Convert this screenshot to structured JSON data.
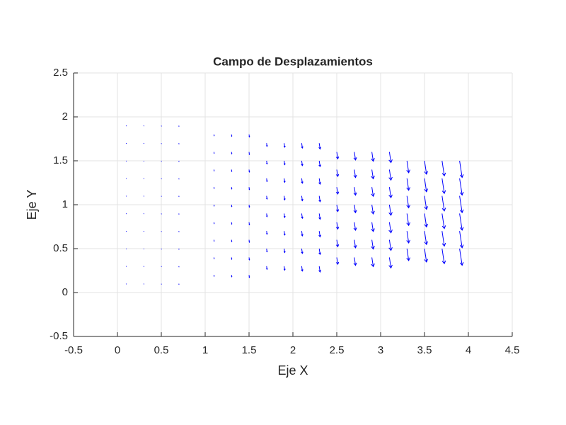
{
  "chart_data": {
    "type": "quiver",
    "title": "Campo de Desplazamientos",
    "x_label": "Eje X",
    "y_label": "Eje Y",
    "color": "#0000ff",
    "grid": true,
    "xlim": [
      -0.5,
      4.5
    ],
    "ylim": [
      -0.5,
      2.5
    ],
    "xticks": [
      -0.5,
      0,
      0.5,
      1,
      1.5,
      2,
      2.5,
      3,
      3.5,
      4,
      4.5
    ],
    "yticks": [
      -0.5,
      0,
      0.5,
      1,
      1.5,
      2,
      2.5
    ],
    "columns": [
      {
        "x": 0.1,
        "y": [
          0.1,
          0.3,
          0.5,
          0.7,
          0.9,
          1.1,
          1.3,
          1.5,
          1.7,
          1.9
        ],
        "u": [
          0,
          0,
          0,
          0,
          0,
          0,
          0,
          0,
          0,
          0
        ],
        "v": [
          -0.001,
          -0.001,
          -0.001,
          -0.001,
          -0.001,
          -0.001,
          -0.001,
          -0.001,
          -0.001,
          -0.001
        ]
      },
      {
        "x": 0.3,
        "y": [
          0.1,
          0.3,
          0.5,
          0.7,
          0.9,
          1.1,
          1.3,
          1.5,
          1.7,
          1.9
        ],
        "u": [
          0,
          0,
          0,
          0,
          0,
          0,
          0,
          0,
          0,
          0
        ],
        "v": [
          -0.002,
          -0.002,
          -0.002,
          -0.002,
          -0.002,
          -0.002,
          -0.002,
          -0.002,
          -0.002,
          -0.002
        ]
      },
      {
        "x": 0.5,
        "y": [
          0.1,
          0.3,
          0.5,
          0.7,
          0.9,
          1.1,
          1.3,
          1.5,
          1.7,
          1.9
        ],
        "u": [
          0.001,
          0.001,
          0.001,
          0.001,
          0.001,
          0.001,
          0.001,
          0.001,
          0.001,
          0.001
        ],
        "v": [
          -0.004,
          -0.004,
          -0.004,
          -0.004,
          -0.004,
          -0.004,
          -0.004,
          -0.004,
          -0.004,
          -0.004
        ]
      },
      {
        "x": 0.7,
        "y": [
          0.1,
          0.3,
          0.5,
          0.7,
          0.9,
          1.1,
          1.3,
          1.5,
          1.7,
          1.9
        ],
        "u": [
          0.001,
          0.001,
          0.001,
          0.001,
          0.001,
          0.001,
          0.001,
          0.001,
          0.001,
          0.001
        ],
        "v": [
          -0.007,
          -0.007,
          -0.007,
          -0.007,
          -0.007,
          -0.007,
          -0.007,
          -0.007,
          -0.007,
          -0.007
        ]
      },
      {
        "x": 1.1,
        "y": [
          0.2,
          0.4,
          0.6,
          0.8,
          1.0,
          1.2,
          1.4,
          1.6,
          1.8
        ],
        "u": [
          0.002,
          0.002,
          0.002,
          0.002,
          0.002,
          0.002,
          0.002,
          0.002,
          0.002
        ],
        "v": [
          -0.015,
          -0.015,
          -0.015,
          -0.015,
          -0.015,
          -0.015,
          -0.015,
          -0.015,
          -0.015
        ]
      },
      {
        "x": 1.3,
        "y": [
          0.2,
          0.4,
          0.6,
          0.8,
          1.0,
          1.2,
          1.4,
          1.6,
          1.8
        ],
        "u": [
          0.003,
          0.003,
          0.003,
          0.003,
          0.003,
          0.003,
          0.003,
          0.003,
          0.003
        ],
        "v": [
          -0.021,
          -0.021,
          -0.021,
          -0.021,
          -0.021,
          -0.021,
          -0.021,
          -0.021,
          -0.021
        ]
      },
      {
        "x": 1.5,
        "y": [
          0.2,
          0.4,
          0.6,
          0.8,
          1.0,
          1.2,
          1.4,
          1.6,
          1.8
        ],
        "u": [
          0.004,
          0.004,
          0.004,
          0.004,
          0.004,
          0.004,
          0.004,
          0.004,
          0.004
        ],
        "v": [
          -0.028,
          -0.028,
          -0.028,
          -0.028,
          -0.028,
          -0.028,
          -0.028,
          -0.028,
          -0.028
        ]
      },
      {
        "x": 1.7,
        "y": [
          0.3,
          0.5,
          0.7,
          0.9,
          1.1,
          1.3,
          1.5,
          1.7
        ],
        "u": [
          0.005,
          0.005,
          0.005,
          0.005,
          0.005,
          0.005,
          0.005,
          0.005
        ],
        "v": [
          -0.036,
          -0.036,
          -0.036,
          -0.036,
          -0.036,
          -0.036,
          -0.036,
          -0.036
        ]
      },
      {
        "x": 1.9,
        "y": [
          0.3,
          0.5,
          0.7,
          0.9,
          1.1,
          1.3,
          1.5,
          1.7
        ],
        "u": [
          0.007,
          0.007,
          0.007,
          0.007,
          0.007,
          0.007,
          0.007,
          0.007
        ],
        "v": [
          -0.045,
          -0.045,
          -0.045,
          -0.045,
          -0.045,
          -0.045,
          -0.045,
          -0.045
        ]
      },
      {
        "x": 2.1,
        "y": [
          0.3,
          0.5,
          0.7,
          0.9,
          1.1,
          1.3,
          1.5,
          1.7
        ],
        "u": [
          0.008,
          0.008,
          0.008,
          0.008,
          0.008,
          0.008,
          0.008,
          0.008
        ],
        "v": [
          -0.055,
          -0.055,
          -0.055,
          -0.055,
          -0.055,
          -0.055,
          -0.055,
          -0.055
        ]
      },
      {
        "x": 2.3,
        "y": [
          0.3,
          0.5,
          0.7,
          0.9,
          1.1,
          1.3,
          1.5,
          1.7
        ],
        "u": [
          0.01,
          0.01,
          0.01,
          0.01,
          0.01,
          0.01,
          0.01,
          0.01
        ],
        "v": [
          -0.066,
          -0.066,
          -0.066,
          -0.066,
          -0.066,
          -0.066,
          -0.066,
          -0.066
        ]
      },
      {
        "x": 2.5,
        "y": [
          0.4,
          0.6,
          0.8,
          1.0,
          1.2,
          1.4,
          1.6
        ],
        "u": [
          0.012,
          0.012,
          0.012,
          0.012,
          0.012,
          0.012,
          0.012
        ],
        "v": [
          -0.078,
          -0.078,
          -0.078,
          -0.078,
          -0.078,
          -0.078,
          -0.078
        ]
      },
      {
        "x": 2.7,
        "y": [
          0.4,
          0.6,
          0.8,
          1.0,
          1.2,
          1.4,
          1.6
        ],
        "u": [
          0.014,
          0.014,
          0.014,
          0.014,
          0.014,
          0.014,
          0.014
        ],
        "v": [
          -0.091,
          -0.091,
          -0.091,
          -0.091,
          -0.091,
          -0.091,
          -0.091
        ]
      },
      {
        "x": 2.9,
        "y": [
          0.4,
          0.6,
          0.8,
          1.0,
          1.2,
          1.4,
          1.6
        ],
        "u": [
          0.016,
          0.016,
          0.016,
          0.016,
          0.016,
          0.016,
          0.016
        ],
        "v": [
          -0.105,
          -0.105,
          -0.105,
          -0.105,
          -0.105,
          -0.105,
          -0.105
        ]
      },
      {
        "x": 3.1,
        "y": [
          0.4,
          0.6,
          0.8,
          1.0,
          1.2,
          1.4,
          1.6
        ],
        "u": [
          0.018,
          0.018,
          0.018,
          0.018,
          0.018,
          0.018,
          0.018
        ],
        "v": [
          -0.12,
          -0.12,
          -0.12,
          -0.12,
          -0.12,
          -0.12,
          -0.12
        ]
      },
      {
        "x": 3.3,
        "y": [
          0.5,
          0.7,
          0.9,
          1.1,
          1.3,
          1.5
        ],
        "u": [
          0.02,
          0.02,
          0.02,
          0.02,
          0.02,
          0.02
        ],
        "v": [
          -0.136,
          -0.136,
          -0.136,
          -0.136,
          -0.136,
          -0.136
        ]
      },
      {
        "x": 3.5,
        "y": [
          0.5,
          0.7,
          0.9,
          1.1,
          1.3,
          1.5
        ],
        "u": [
          0.023,
          0.023,
          0.023,
          0.023,
          0.023,
          0.023
        ],
        "v": [
          -0.153,
          -0.153,
          -0.153,
          -0.153,
          -0.153,
          -0.153
        ]
      },
      {
        "x": 3.7,
        "y": [
          0.5,
          0.7,
          0.9,
          1.1,
          1.3,
          1.5
        ],
        "u": [
          0.026,
          0.026,
          0.026,
          0.026,
          0.026,
          0.026
        ],
        "v": [
          -0.171,
          -0.171,
          -0.171,
          -0.171,
          -0.171,
          -0.171
        ]
      },
      {
        "x": 3.9,
        "y": [
          0.5,
          0.7,
          0.9,
          1.1,
          1.3,
          1.5
        ],
        "u": [
          0.029,
          0.029,
          0.029,
          0.029,
          0.029,
          0.029
        ],
        "v": [
          -0.19,
          -0.19,
          -0.19,
          -0.19,
          -0.19,
          -0.19
        ]
      }
    ]
  }
}
